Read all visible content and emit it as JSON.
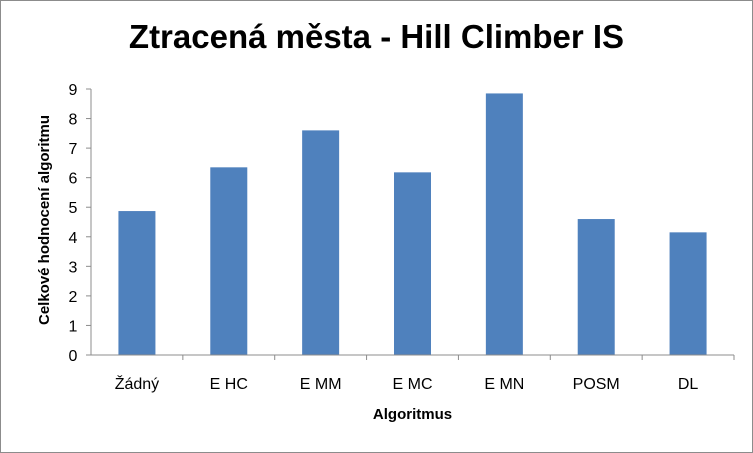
{
  "chart_data": {
    "type": "bar",
    "title": "Ztracená města - Hill Climber IS",
    "xlabel": "Algoritmus",
    "ylabel": "Celkové hodnocení algoritmu",
    "categories": [
      "Žádný",
      "E HC",
      "E MM",
      "E MC",
      "E MN",
      "POSM",
      "DL"
    ],
    "values": [
      4.87,
      6.35,
      7.6,
      6.18,
      8.85,
      4.6,
      4.15
    ],
    "ylim": [
      0,
      9
    ],
    "yticks": [
      "0",
      "1",
      "2",
      "3",
      "4",
      "5",
      "6",
      "7",
      "8",
      "9"
    ],
    "grid": false,
    "legend": "none",
    "bar_color": "#4f81bd"
  }
}
